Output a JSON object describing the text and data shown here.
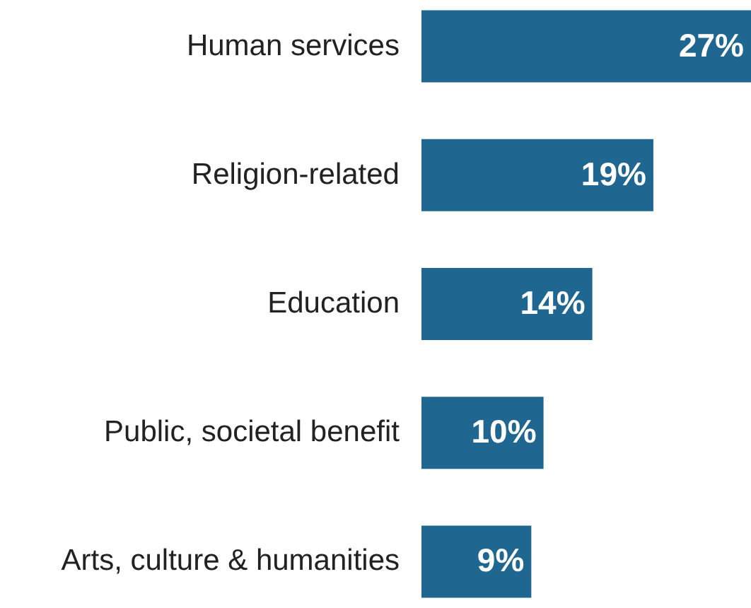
{
  "chart_data": {
    "type": "bar",
    "orientation": "horizontal",
    "categories": [
      "Human services",
      "Religion-related",
      "Education",
      "Public, societal benefit",
      "Arts, culture & humanities"
    ],
    "values": [
      27,
      19,
      14,
      10,
      9
    ],
    "value_labels": [
      "27%",
      "19%",
      "14%",
      "10%",
      "9%"
    ],
    "color": "#1f6690",
    "grid": false
  }
}
